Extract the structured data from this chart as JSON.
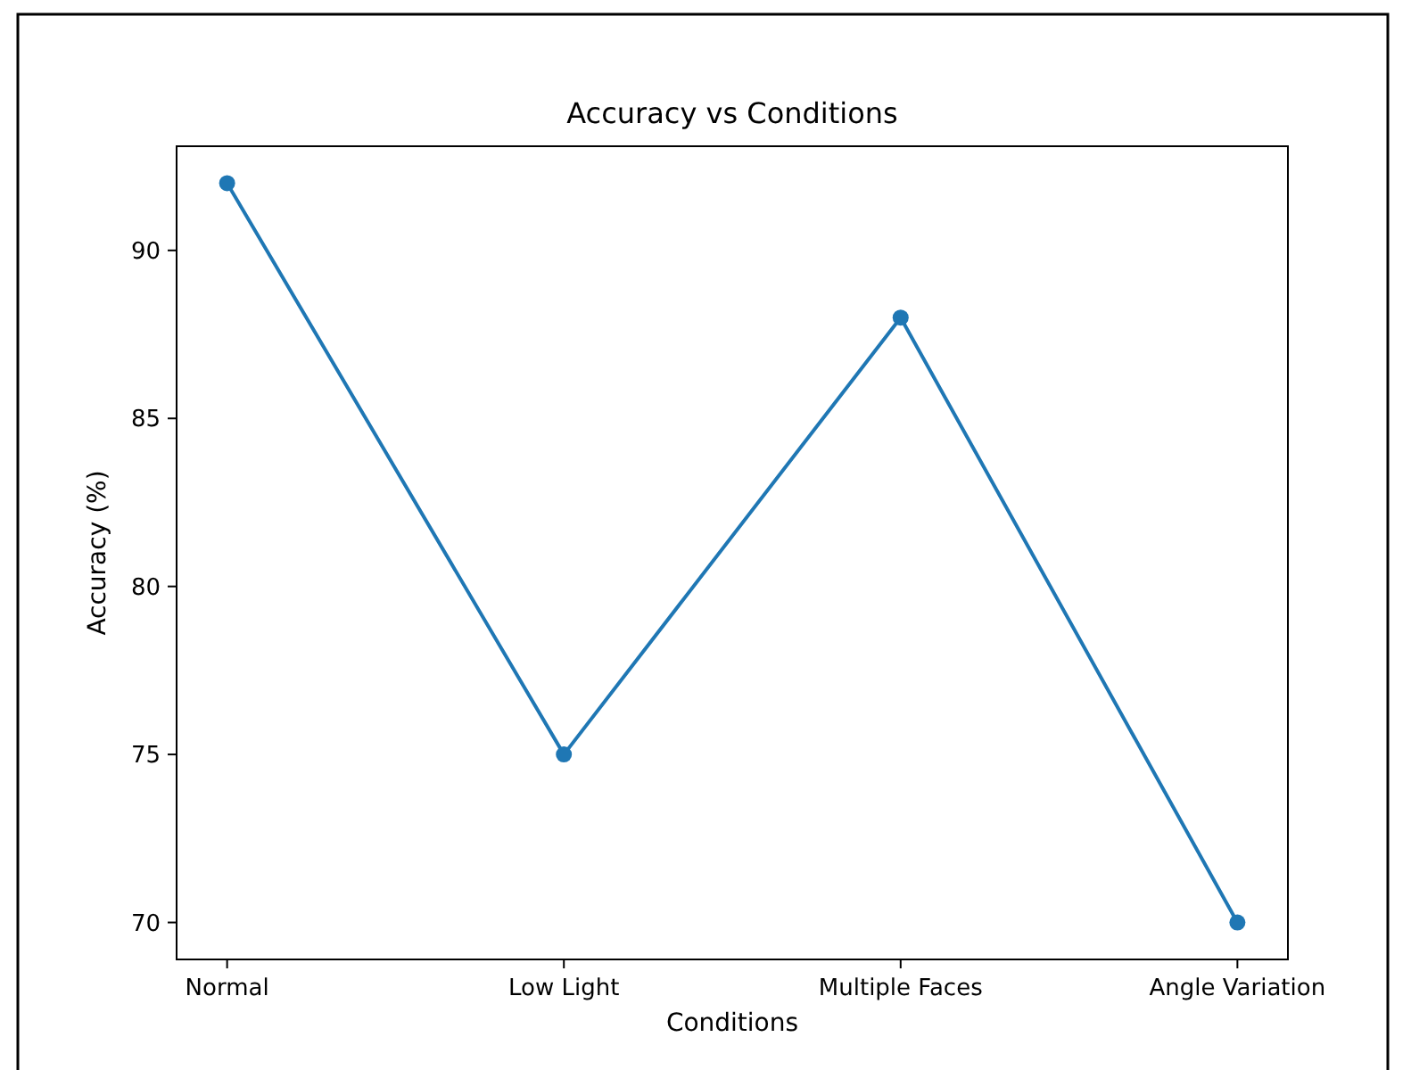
{
  "chart_data": {
    "type": "line",
    "title": "Accuracy vs Conditions",
    "xlabel": "Conditions",
    "ylabel": "Accuracy (%)",
    "categories": [
      "Normal",
      "Low Light",
      "Multiple Faces",
      "Angle Variation"
    ],
    "series": [
      {
        "color": "#1f77b4",
        "values": [
          92,
          75,
          88,
          70
        ]
      }
    ],
    "ylim": [
      68.9,
      93.1
    ],
    "yticks": [
      70,
      75,
      80,
      85,
      90
    ],
    "marker": "circle",
    "line_style": "solid"
  }
}
